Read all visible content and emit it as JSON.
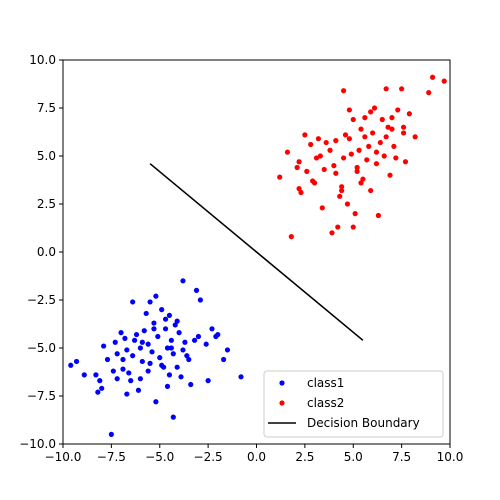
{
  "chart_data": {
    "type": "scatter",
    "xlim": [
      -10,
      10
    ],
    "ylim": [
      -10,
      10
    ],
    "xticks": [
      -10,
      -7.5,
      -5,
      -2.5,
      0,
      2.5,
      5,
      7.5,
      10
    ],
    "yticks": [
      -10,
      -7.5,
      -5,
      -2.5,
      0,
      2.5,
      5,
      7.5,
      10
    ],
    "xtick_labels": [
      "−10.0",
      "−7.5",
      "−5.0",
      "−2.5",
      "0.0",
      "2.5",
      "5.0",
      "7.5",
      "10.0"
    ],
    "ytick_labels": [
      "−10.0",
      "−7.5",
      "−5.0",
      "−2.5",
      "0.0",
      "2.5",
      "5.0",
      "7.5",
      "10.0"
    ],
    "grid": false,
    "legend_position": "bottom-right",
    "series": [
      {
        "name": "class1",
        "kind": "points",
        "color": "#0000ff",
        "points": [
          [
            -9.6,
            -5.9
          ],
          [
            -9.3,
            -5.7
          ],
          [
            -8.9,
            -6.4
          ],
          [
            -8.3,
            -6.4
          ],
          [
            -8.1,
            -6.7
          ],
          [
            -8.0,
            -7.1
          ],
          [
            -8.2,
            -7.3
          ],
          [
            -7.9,
            -4.9
          ],
          [
            -7.7,
            -5.6
          ],
          [
            -7.5,
            -9.5
          ],
          [
            -7.4,
            -6.2
          ],
          [
            -7.2,
            -5.3
          ],
          [
            -7.0,
            -4.2
          ],
          [
            -6.9,
            -6.1
          ],
          [
            -7.2,
            -6.6
          ],
          [
            -6.8,
            -4.5
          ],
          [
            -6.7,
            -5.1
          ],
          [
            -6.6,
            -6.3
          ],
          [
            -6.5,
            -6.7
          ],
          [
            -6.4,
            -2.6
          ],
          [
            -6.4,
            -5.4
          ],
          [
            -6.2,
            -4.3
          ],
          [
            -6.1,
            -7.2
          ],
          [
            -6.0,
            -5.0
          ],
          [
            -5.9,
            -5.7
          ],
          [
            -5.8,
            -4.1
          ],
          [
            -5.7,
            -3.2
          ],
          [
            -5.6,
            -4.8
          ],
          [
            -5.6,
            -6.2
          ],
          [
            -5.5,
            -2.6
          ],
          [
            -5.4,
            -5.2
          ],
          [
            -5.3,
            -3.7
          ],
          [
            -5.2,
            -2.3
          ],
          [
            -5.2,
            -7.8
          ],
          [
            -5.1,
            -4.4
          ],
          [
            -5.0,
            -5.5
          ],
          [
            -4.9,
            -3.0
          ],
          [
            -4.8,
            -6.0
          ],
          [
            -4.7,
            -4.0
          ],
          [
            -4.6,
            -5.0
          ],
          [
            -4.6,
            -7.0
          ],
          [
            -4.5,
            -3.3
          ],
          [
            -4.4,
            -4.6
          ],
          [
            -4.3,
            -5.3
          ],
          [
            -4.3,
            -8.6
          ],
          [
            -4.2,
            -3.8
          ],
          [
            -4.1,
            -6.0
          ],
          [
            -4.0,
            -4.2
          ],
          [
            -3.9,
            -6.5
          ],
          [
            -3.8,
            -1.5
          ],
          [
            -3.8,
            -5.1
          ],
          [
            -3.7,
            -4.7
          ],
          [
            -3.5,
            -5.6
          ],
          [
            -3.4,
            -6.9
          ],
          [
            -3.2,
            -4.6
          ],
          [
            -3.1,
            -2.0
          ],
          [
            -3.0,
            -4.4
          ],
          [
            -2.9,
            -2.5
          ],
          [
            -2.6,
            -4.8
          ],
          [
            -2.5,
            -6.7
          ],
          [
            -2.3,
            -4.0
          ],
          [
            -2.1,
            -4.4
          ],
          [
            -2.0,
            -4.3
          ],
          [
            -1.7,
            -5.6
          ],
          [
            -1.5,
            -5.1
          ],
          [
            -0.8,
            -6.5
          ],
          [
            -7.3,
            -4.7
          ],
          [
            -6.9,
            -5.6
          ],
          [
            -6.3,
            -4.6
          ],
          [
            -6.0,
            -6.6
          ],
          [
            -5.5,
            -5.8
          ],
          [
            -5.3,
            -4.0
          ],
          [
            -4.9,
            -5.9
          ],
          [
            -4.7,
            -3.5
          ],
          [
            -4.5,
            -6.4
          ],
          [
            -4.4,
            -5.0
          ],
          [
            -4.1,
            -3.6
          ],
          [
            -3.6,
            -5.4
          ],
          [
            -6.7,
            -7.4
          ],
          [
            -5.9,
            -4.7
          ]
        ]
      },
      {
        "name": "class2",
        "kind": "points",
        "color": "#ff0000",
        "points": [
          [
            1.2,
            3.9
          ],
          [
            1.6,
            5.2
          ],
          [
            1.8,
            0.8
          ],
          [
            2.1,
            4.4
          ],
          [
            2.2,
            3.3
          ],
          [
            2.3,
            3.1
          ],
          [
            2.5,
            6.1
          ],
          [
            2.6,
            4.2
          ],
          [
            2.8,
            5.6
          ],
          [
            3.0,
            3.6
          ],
          [
            3.1,
            4.9
          ],
          [
            3.2,
            5.9
          ],
          [
            3.4,
            2.3
          ],
          [
            3.5,
            4.3
          ],
          [
            3.6,
            5.7
          ],
          [
            3.8,
            5.3
          ],
          [
            3.9,
            1.0
          ],
          [
            4.0,
            4.5
          ],
          [
            4.1,
            5.8
          ],
          [
            4.2,
            1.3
          ],
          [
            4.3,
            2.9
          ],
          [
            4.4,
            3.4
          ],
          [
            4.5,
            4.9
          ],
          [
            4.5,
            8.4
          ],
          [
            4.6,
            6.1
          ],
          [
            4.7,
            2.5
          ],
          [
            4.8,
            7.4
          ],
          [
            4.9,
            5.1
          ],
          [
            5.0,
            6.9
          ],
          [
            5.0,
            1.3
          ],
          [
            5.1,
            2.0
          ],
          [
            5.2,
            4.2
          ],
          [
            5.3,
            5.3
          ],
          [
            5.4,
            6.4
          ],
          [
            5.5,
            3.8
          ],
          [
            5.6,
            7.0
          ],
          [
            5.7,
            4.8
          ],
          [
            5.8,
            5.5
          ],
          [
            5.9,
            3.2
          ],
          [
            6.0,
            6.2
          ],
          [
            6.1,
            7.5
          ],
          [
            6.2,
            4.6
          ],
          [
            6.3,
            1.9
          ],
          [
            6.4,
            5.7
          ],
          [
            6.5,
            6.9
          ],
          [
            6.6,
            5.0
          ],
          [
            6.7,
            8.5
          ],
          [
            6.8,
            6.5
          ],
          [
            6.9,
            4.0
          ],
          [
            7.0,
            7.0
          ],
          [
            7.1,
            5.5
          ],
          [
            7.2,
            4.9
          ],
          [
            7.3,
            7.4
          ],
          [
            7.5,
            8.5
          ],
          [
            7.6,
            6.2
          ],
          [
            7.7,
            4.7
          ],
          [
            7.9,
            7.2
          ],
          [
            8.2,
            6.0
          ],
          [
            8.9,
            8.3
          ],
          [
            9.1,
            9.1
          ],
          [
            9.7,
            8.9
          ],
          [
            2.2,
            4.7
          ],
          [
            2.9,
            3.7
          ],
          [
            3.3,
            5.0
          ],
          [
            4.4,
            3.2
          ],
          [
            4.8,
            5.9
          ],
          [
            5.2,
            4.4
          ],
          [
            5.6,
            6.0
          ],
          [
            6.2,
            5.2
          ],
          [
            7.0,
            6.4
          ],
          [
            7.6,
            6.5
          ],
          [
            5.9,
            7.3
          ],
          [
            6.7,
            6.0
          ],
          [
            4.1,
            4.1
          ],
          [
            5.4,
            3.6
          ]
        ]
      },
      {
        "name": "Decision Boundary",
        "kind": "line",
        "color": "#000000",
        "points": [
          [
            -5.5,
            4.6
          ],
          [
            5.5,
            -4.6
          ]
        ]
      }
    ]
  }
}
